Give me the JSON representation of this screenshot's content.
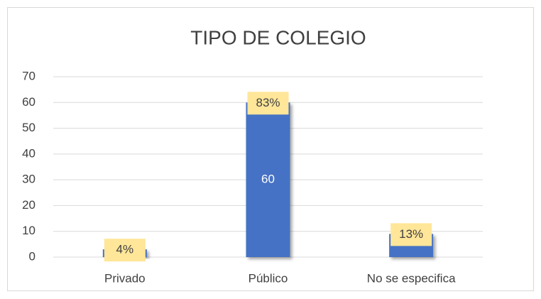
{
  "chart_data": {
    "type": "bar",
    "title": "TIPO DE COLEGIO",
    "categories": [
      "Privado",
      "Público",
      "No se especifica"
    ],
    "values": [
      3,
      60,
      9
    ],
    "share_labels": [
      "4%",
      "83%",
      "13%"
    ],
    "color": "#4472c4",
    "label_box_color": "#ffe699",
    "ylim": [
      0,
      70
    ],
    "yticks": [
      0,
      10,
      20,
      30,
      40,
      50,
      60,
      70
    ],
    "grid": true
  }
}
